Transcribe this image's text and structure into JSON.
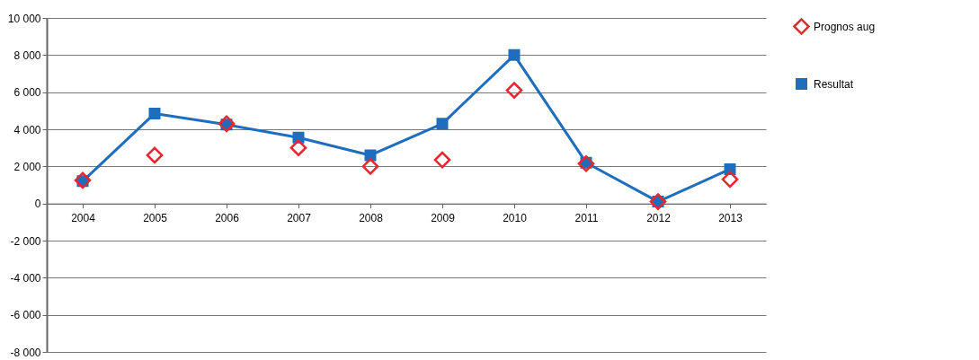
{
  "chart_data": {
    "type": "line",
    "categories": [
      "2004",
      "2005",
      "2006",
      "2007",
      "2008",
      "2009",
      "2010",
      "2011",
      "2012",
      "2013"
    ],
    "series": [
      {
        "name": "Prognos aug",
        "type": "scatter",
        "marker": "diamond",
        "color": "#e8262d",
        "values": [
          1250,
          2600,
          4300,
          3000,
          2000,
          2350,
          6100,
          2150,
          100,
          1300
        ]
      },
      {
        "name": "Resultat",
        "type": "line",
        "marker": "square",
        "color": "#1f6dbf",
        "values": [
          1200,
          4850,
          4250,
          3550,
          2600,
          4300,
          8000,
          2200,
          100,
          1850
        ]
      }
    ],
    "ylim": [
      -8000,
      10000
    ],
    "yticks": [
      {
        "value": -8000,
        "label": "-8 000"
      },
      {
        "value": -6000,
        "label": "-6 000"
      },
      {
        "value": -4000,
        "label": "-4 000"
      },
      {
        "value": -2000,
        "label": "-2 000"
      },
      0,
      {
        "value": 2000,
        "label": "2 000"
      },
      {
        "value": 4000,
        "label": "4 000"
      },
      {
        "value": 6000,
        "label": "6 000"
      },
      {
        "value": 8000,
        "label": "8 000"
      },
      {
        "value": 10000,
        "label": "10 000"
      }
    ],
    "grid": "y",
    "legend": "right"
  }
}
